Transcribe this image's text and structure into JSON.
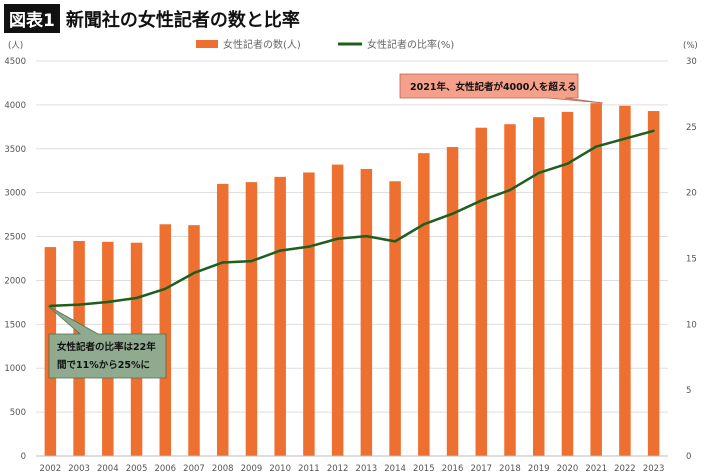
{
  "header": {
    "badge": "図表1",
    "title": "新聞社の女性記者の数と比率"
  },
  "chart_data": {
    "type": "bar+line",
    "categories": [
      "2002",
      "2003",
      "2004",
      "2005",
      "2006",
      "2007",
      "2008",
      "2009",
      "2010",
      "2011",
      "2012",
      "2013",
      "2014",
      "2015",
      "2016",
      "2017",
      "2018",
      "2019",
      "2020",
      "2021",
      "2022",
      "2023"
    ],
    "series": [
      {
        "name": "女性記者の数(人)",
        "type": "bar",
        "axis": "left",
        "color": "#ED7030",
        "values": [
          2380,
          2450,
          2440,
          2430,
          2640,
          2630,
          3100,
          3120,
          3180,
          3230,
          3320,
          3270,
          3130,
          3450,
          3520,
          3740,
          3780,
          3860,
          3920,
          4020,
          3990,
          3930
        ]
      },
      {
        "name": "女性記者の比率(%)",
        "type": "line",
        "axis": "right",
        "color": "#1E5E1E",
        "values": [
          11.4,
          11.5,
          11.7,
          12.0,
          12.7,
          13.9,
          14.7,
          14.8,
          15.6,
          15.9,
          16.5,
          16.7,
          16.3,
          17.6,
          18.4,
          19.4,
          20.2,
          21.5,
          22.2,
          23.5,
          24.1,
          24.7
        ]
      }
    ],
    "y_left": {
      "label": "(人)",
      "range": [
        0,
        4500
      ],
      "ticks": [
        "0",
        "500",
        "1000",
        "1500",
        "2000",
        "2500",
        "3000",
        "3500",
        "4000",
        "4500"
      ]
    },
    "y_right": {
      "label": "(%)",
      "range": [
        0,
        30
      ],
      "ticks": [
        "0",
        "5",
        "10",
        "15",
        "20",
        "25",
        "30"
      ]
    },
    "grid": true,
    "legend_position": "top-center",
    "annotations": [
      {
        "text": "2021年、女性記者が4000人を超える",
        "color": "#F4A08A"
      },
      {
        "text_line1": "女性記者の比率は22年",
        "text_line2": "間で11%から25%に",
        "color": "#8FAA8F"
      }
    ]
  }
}
